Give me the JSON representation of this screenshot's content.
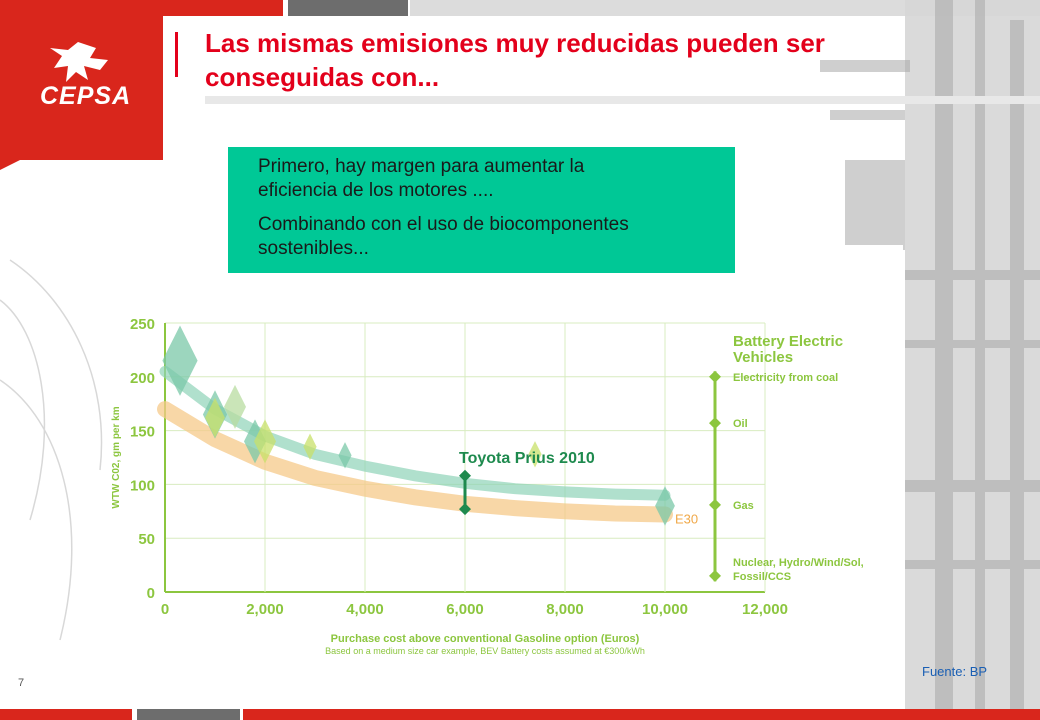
{
  "header": {
    "title_line1": "Las mismas emisiones muy reducidas pueden ser",
    "title_line2": "conseguidas con...",
    "logo_text": "CEPSA",
    "brand_color": "#e3001b"
  },
  "callout": {
    "line1": "Primero, hay margen para aumentar la",
    "line2": "eficiencia de los motores ....",
    "line3": "Combinando con el uso de biocomponentes",
    "line4": "sostenibles...",
    "color": "#00c896"
  },
  "footer": {
    "page_number": "7",
    "source": "Fuente: BP"
  },
  "chart_data": {
    "type": "scatter",
    "xlabel": "Purchase cost above conventional Gasoline option (Euros)",
    "xlabel_sub": "Based on a medium size car example, BEV Battery costs assumed at €300/kWh",
    "ylabel": "WTW C02, gm per km",
    "xlim": [
      0,
      12000
    ],
    "ylim": [
      0,
      250
    ],
    "xticks": [
      "0",
      "2,000",
      "4,000",
      "6,000",
      "8,000",
      "10,000",
      "12,000"
    ],
    "yticks": [
      "0",
      "50",
      "100",
      "150",
      "200",
      "250"
    ],
    "xtick_values": [
      0,
      2000,
      4000,
      6000,
      8000,
      10000,
      12000
    ],
    "ytick_values": [
      0,
      50,
      100,
      150,
      200,
      250
    ],
    "gasoline_curve": {
      "color": "#8fd3b8",
      "x": [
        0,
        1000,
        2000,
        3000,
        4000,
        5000,
        6000,
        7000,
        8000,
        9000,
        10000
      ],
      "y": [
        205,
        170,
        145,
        128,
        117,
        108,
        101,
        96,
        93,
        91,
        90
      ]
    },
    "e30_curve": {
      "name": "E30",
      "color": "#f5c98a",
      "x": [
        0,
        1000,
        2000,
        3000,
        4000,
        5000,
        6000,
        7000,
        8000,
        9000,
        10000
      ],
      "y": [
        170,
        142,
        121,
        106,
        96,
        88,
        82,
        78,
        75,
        73,
        72
      ]
    },
    "points": [
      {
        "x": 300,
        "y": 215,
        "size": 1.6,
        "color": "#7bc8a8"
      },
      {
        "x": 1000,
        "y": 165,
        "size": 1.1,
        "color": "#7bc8a8"
      },
      {
        "x": 1000,
        "y": 162,
        "size": 0.9,
        "color": "#c8e06a"
      },
      {
        "x": 1400,
        "y": 172,
        "size": 1.0,
        "color": "#b8dca0"
      },
      {
        "x": 1800,
        "y": 140,
        "size": 1.0,
        "color": "#7bc8a8"
      },
      {
        "x": 2000,
        "y": 140,
        "size": 1.0,
        "color": "#c8e06a"
      },
      {
        "x": 2900,
        "y": 135,
        "size": 0.6,
        "color": "#c8e06a"
      },
      {
        "x": 3600,
        "y": 127,
        "size": 0.6,
        "color": "#7bc8a8"
      },
      {
        "x": 7400,
        "y": 128,
        "size": 0.6,
        "color": "#c8e06a"
      },
      {
        "x": 10000,
        "y": 80,
        "size": 0.9,
        "color": "#7bc8a8"
      }
    ],
    "prius": {
      "label": "Toyota Prius 2010",
      "x": 6000,
      "y_high": 108,
      "y_low": 77,
      "color": "#1e8a4e"
    },
    "e30_label": "E30",
    "bev": {
      "title_line1": "Battery Electric",
      "title_line2": "Vehicles",
      "x": 11000,
      "color": "#8cc63f",
      "levels": [
        {
          "label": "Electricity from coal",
          "y": 200
        },
        {
          "label": "Oil",
          "y": 157
        },
        {
          "label": "Gas",
          "y": 81
        },
        {
          "label": "Nuclear, Hydro/Wind/Sol,",
          "label2": "Fossil/CCS",
          "y": 15
        }
      ]
    },
    "axis_color": "#8cc63f",
    "grid": true
  }
}
